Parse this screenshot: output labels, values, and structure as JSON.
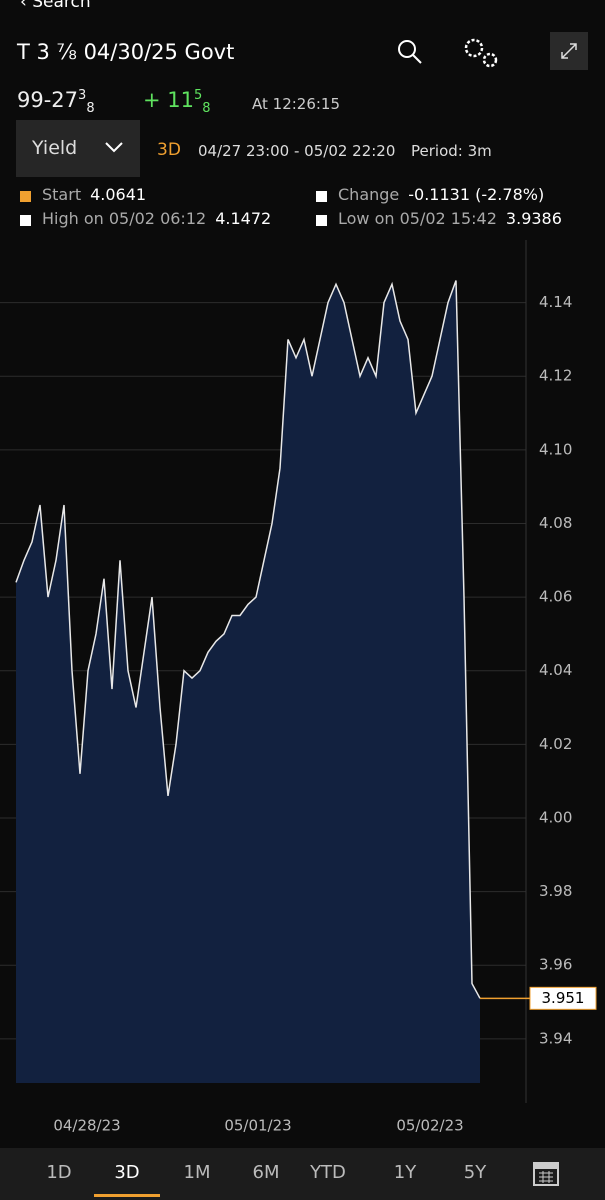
{
  "header": {
    "back": "Search",
    "title": "T 3 ⅞ 04/30/25 Govt"
  },
  "quote": {
    "price": {
      "main": "99-27",
      "num": "3",
      "den": "8"
    },
    "change": {
      "main": "+ 11",
      "num": "5",
      "den": "8"
    },
    "time": "At 12:26:15"
  },
  "controls": {
    "field": "Yield",
    "range": "3D",
    "window": "04/27 23:00 - 05/02 22:20",
    "period": "Period: 3m"
  },
  "stats": [
    {
      "label": "Start",
      "value": "4.0641"
    },
    {
      "label": "Change",
      "value": "-0.1131 (-2.78%)"
    },
    {
      "label": "High on 05/02 06:12",
      "value": "4.1472"
    },
    {
      "label": "Low on 05/02 15:42",
      "value": "3.9386"
    }
  ],
  "chart_data": {
    "type": "area",
    "x_labels": [
      "04/28/23",
      "05/01/23",
      "05/02/23"
    ],
    "series": [
      {
        "name": "Yield",
        "color": "#e8e8e8",
        "values": [
          4.064,
          4.07,
          4.075,
          4.085,
          4.06,
          4.07,
          4.085,
          4.04,
          4.012,
          4.04,
          4.05,
          4.065,
          4.035,
          4.07,
          4.04,
          4.03,
          4.045,
          4.06,
          4.03,
          4.006,
          4.02,
          4.04,
          4.038,
          4.04,
          4.045,
          4.048,
          4.05,
          4.055,
          4.055,
          4.058,
          4.06,
          4.07,
          4.08,
          4.095,
          4.13,
          4.125,
          4.13,
          4.12,
          4.13,
          4.14,
          4.145,
          4.14,
          4.13,
          4.12,
          4.125,
          4.12,
          4.14,
          4.145,
          4.135,
          4.13,
          4.11,
          4.115,
          4.12,
          4.13,
          4.14,
          4.146,
          4.06,
          3.955,
          3.951
        ]
      }
    ],
    "fill": "#12213f",
    "ylim": [
      3.928,
      4.157
    ],
    "yticks": [
      3.94,
      3.96,
      3.98,
      {
        "value": 4.0,
        "label": "4.00"
      },
      4.02,
      4.04,
      4.06,
      4.08,
      {
        "value": 4.1,
        "label": "4.10"
      },
      4.12,
      4.14
    ],
    "grid": true
  },
  "tabs": [
    "1D",
    "3D",
    "1M",
    "6M",
    "YTD",
    "1Y",
    "5Y"
  ]
}
